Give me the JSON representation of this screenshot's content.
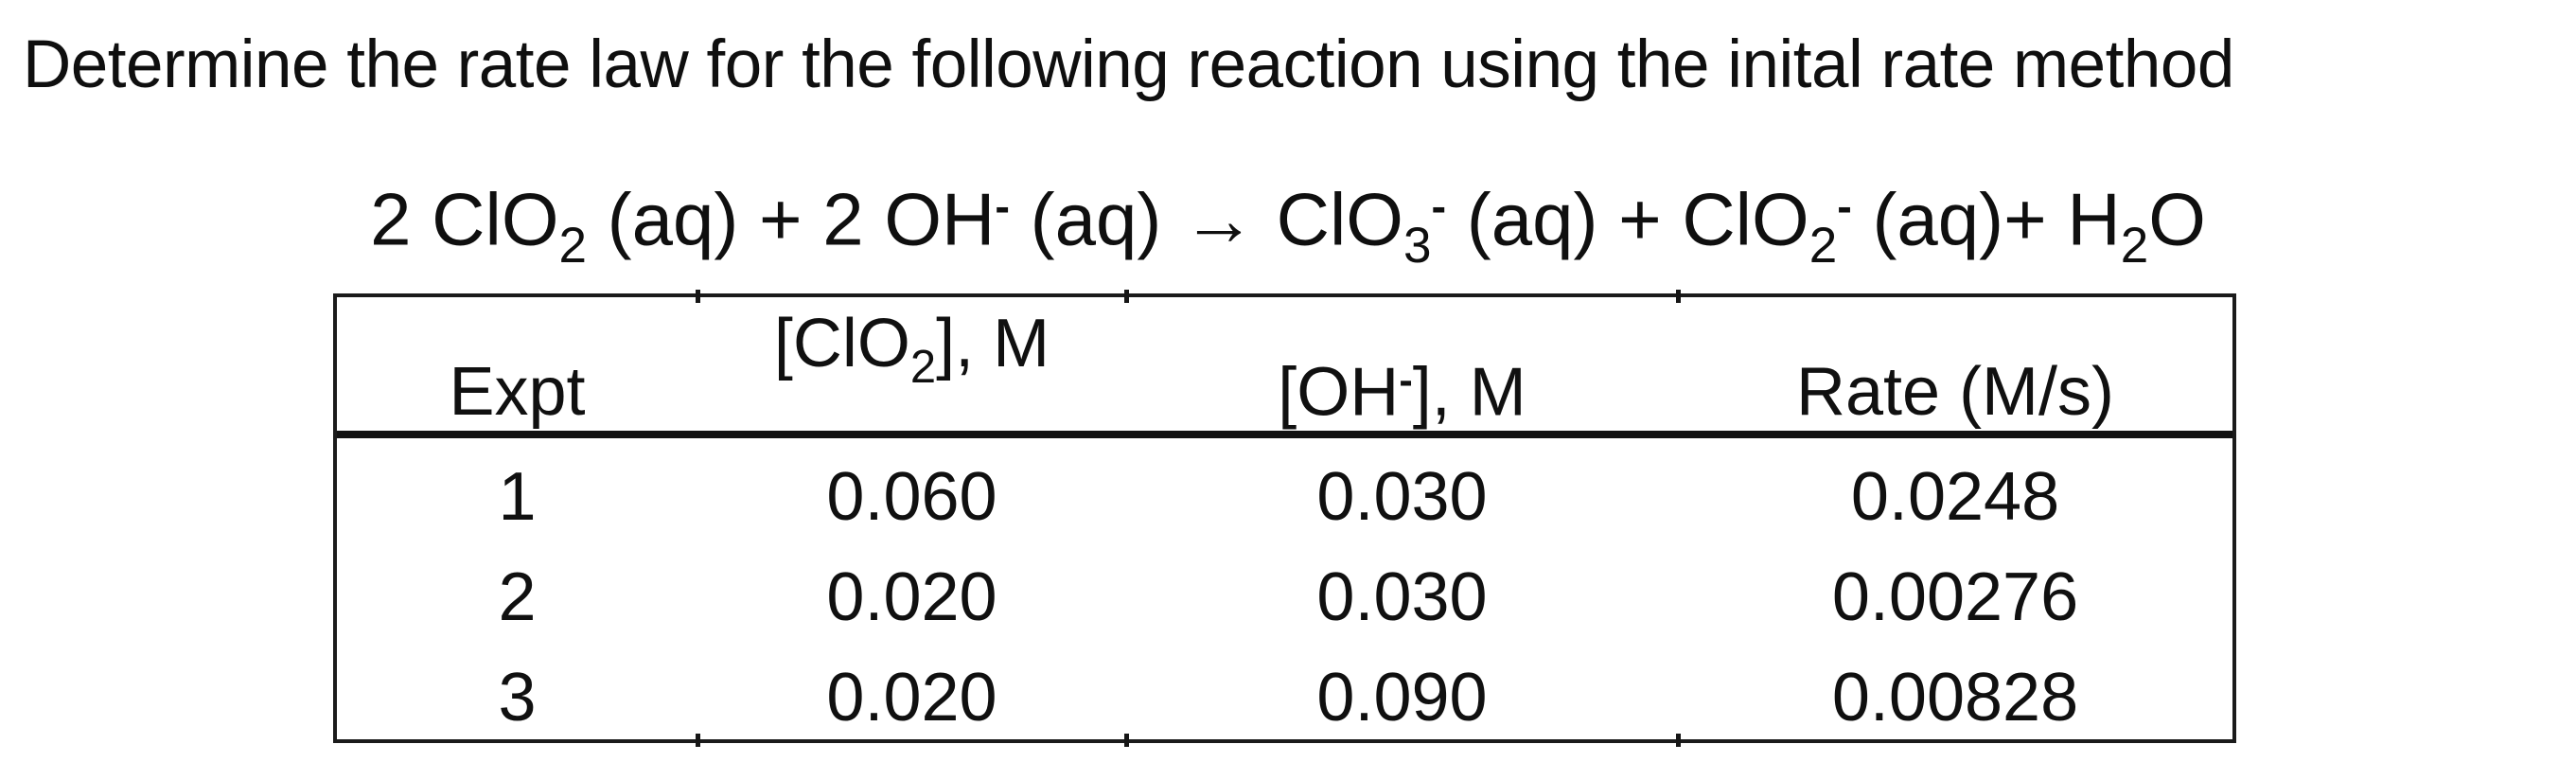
{
  "colors": {
    "background": "#ffffff",
    "text": "#101010",
    "table_border": "#1b1b1b"
  },
  "title": "Determine the rate law for the following reaction using the inital rate method",
  "equation": {
    "segments": [
      {
        "t": "2 ClO"
      },
      {
        "t": "2",
        "v": "sub"
      },
      {
        "t": " (aq) + 2 OH"
      },
      {
        "t": "-",
        "v": "sup"
      },
      {
        "t": " (aq) → ClO"
      },
      {
        "t": "3",
        "v": "sub"
      },
      {
        "t": "-",
        "v": "sup"
      },
      {
        "t": " (aq) + ClO"
      },
      {
        "t": "2",
        "v": "sub"
      },
      {
        "t": "-",
        "v": "sup"
      },
      {
        "t": " (aq)+ H"
      },
      {
        "t": "2",
        "v": "sub"
      },
      {
        "t": "O"
      }
    ]
  },
  "table": {
    "headers": [
      {
        "label": "Expt",
        "segments": [
          {
            "t": "Expt"
          }
        ]
      },
      {
        "label": "[ClO2], M",
        "segments": [
          {
            "t": "[ClO"
          },
          {
            "t": "2",
            "v": "sub"
          },
          {
            "t": "], M"
          }
        ]
      },
      {
        "label": "[OH-], M",
        "segments": [
          {
            "t": "[OH"
          },
          {
            "t": "-",
            "v": "sup"
          },
          {
            "t": "], M"
          }
        ]
      },
      {
        "label": "Rate (M/s)",
        "segments": [
          {
            "t": "Rate (M/s)"
          }
        ]
      }
    ],
    "rows": [
      [
        "1",
        "0.060",
        "0.030",
        "0.0248"
      ],
      [
        "2",
        "0.020",
        "0.030",
        "0.00276"
      ],
      [
        "3",
        "0.020",
        "0.090",
        "0.00828"
      ]
    ]
  }
}
